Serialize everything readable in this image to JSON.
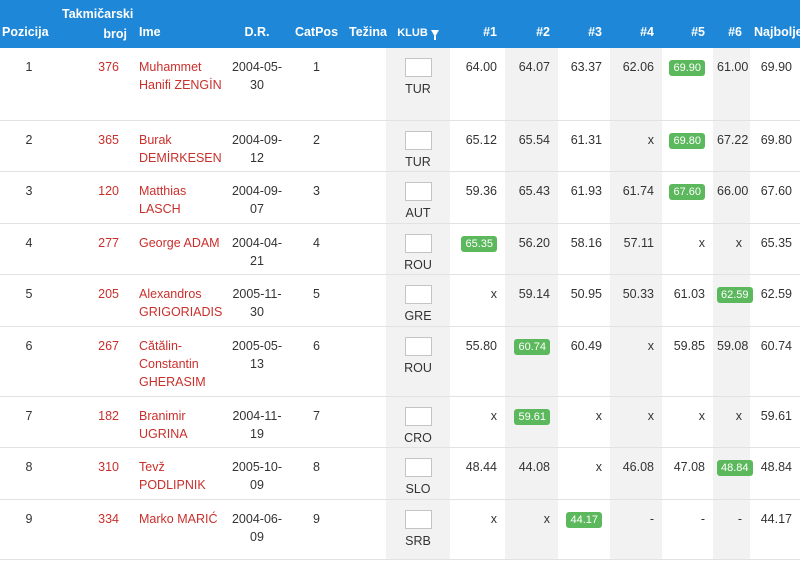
{
  "columns": {
    "pos": "Pozicija",
    "bib_line1": "Takmičarski",
    "bib_line2": "broj",
    "name": "Ime",
    "dob": "D.R.",
    "catpos": "CatPos",
    "weight": "Težina",
    "club": "KLUB",
    "a1": "#1",
    "a2": "#2",
    "a3": "#3",
    "a4": "#4",
    "a5": "#5",
    "a6": "#6",
    "best": "Najbolje"
  },
  "colors": {
    "header_bg": "#1e87d8",
    "name_red": "#c9302c",
    "best_badge": "#5cb85c"
  },
  "rows": [
    {
      "pos": "1",
      "bib": "376",
      "name": "Muhammet Hanifi ZENGİN",
      "dob": "2004-05-30",
      "catpos": "1",
      "weight": "",
      "club": "TUR",
      "a": [
        "64.00",
        "64.07",
        "63.37",
        "62.06",
        "69.90",
        "61.00"
      ],
      "best_idx": 4,
      "best": "69.90"
    },
    {
      "pos": "2",
      "bib": "365",
      "name": "Burak DEMİRKESEN",
      "dob": "2004-09-12",
      "catpos": "2",
      "weight": "",
      "club": "TUR",
      "a": [
        "65.12",
        "65.54",
        "61.31",
        "x",
        "69.80",
        "67.22"
      ],
      "best_idx": 4,
      "best": "69.80"
    },
    {
      "pos": "3",
      "bib": "120",
      "name": "Matthias LASCH",
      "dob": "2004-09-07",
      "catpos": "3",
      "weight": "",
      "club": "AUT",
      "a": [
        "59.36",
        "65.43",
        "61.93",
        "61.74",
        "67.60",
        "66.00"
      ],
      "best_idx": 4,
      "best": "67.60"
    },
    {
      "pos": "4",
      "bib": "277",
      "name": "George ADAM",
      "dob": "2004-04-21",
      "catpos": "4",
      "weight": "",
      "club": "ROU",
      "a": [
        "65.35",
        "56.20",
        "58.16",
        "57.11",
        "x",
        "x"
      ],
      "best_idx": 0,
      "best": "65.35"
    },
    {
      "pos": "5",
      "bib": "205",
      "name": "Alexandros GRIGORIADIS",
      "dob": "2005-11-30",
      "catpos": "5",
      "weight": "",
      "club": "GRE",
      "a": [
        "x",
        "59.14",
        "50.95",
        "50.33",
        "61.03",
        "62.59"
      ],
      "best_idx": 5,
      "best": "62.59"
    },
    {
      "pos": "6",
      "bib": "267",
      "name": "Cătălin-Constantin GHERASIM",
      "dob": "2005-05-13",
      "catpos": "6",
      "weight": "",
      "club": "ROU",
      "a": [
        "55.80",
        "60.74",
        "60.49",
        "x",
        "59.85",
        "59.08"
      ],
      "best_idx": 1,
      "best": "60.74"
    },
    {
      "pos": "7",
      "bib": "182",
      "name": "Branimir UGRINA",
      "dob": "2004-11-19",
      "catpos": "7",
      "weight": "",
      "club": "CRO",
      "a": [
        "x",
        "59.61",
        "x",
        "x",
        "x",
        "x"
      ],
      "best_idx": 1,
      "best": "59.61"
    },
    {
      "pos": "8",
      "bib": "310",
      "name": "Tevž PODLIPNIK",
      "dob": "2005-10-09",
      "catpos": "8",
      "weight": "",
      "club": "SLO",
      "a": [
        "48.44",
        "44.08",
        "x",
        "46.08",
        "47.08",
        "48.84"
      ],
      "best_idx": 5,
      "best": "48.84"
    },
    {
      "pos": "9",
      "bib": "334",
      "name": "Marko MARIĆ",
      "dob": "2004-06-09",
      "catpos": "9",
      "weight": "",
      "club": "SRB",
      "a": [
        "x",
        "x",
        "44.17",
        "-",
        "-",
        "-"
      ],
      "best_idx": 2,
      "best": "44.17"
    }
  ]
}
